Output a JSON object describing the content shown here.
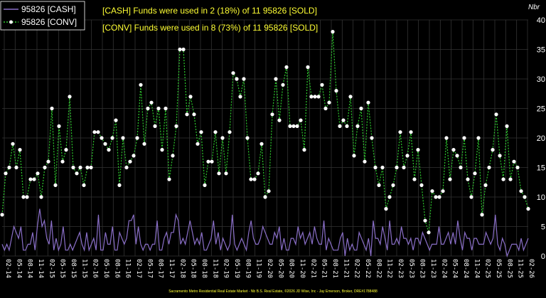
{
  "colors": {
    "cash": "#8a6fc8",
    "conv": "#2ecc2e",
    "annotation": "#ffff33",
    "background": "#000000",
    "grid": "#333333"
  },
  "chart_data": {
    "type": "line",
    "title": "",
    "xlabel": "",
    "ylabel": "Nbr",
    "ylim": [
      0,
      40
    ],
    "yticks": [
      0,
      5,
      10,
      15,
      20,
      25,
      30,
      35,
      40
    ],
    "grid": true,
    "legend_position": "top-left",
    "legend": [
      "95826 [CASH]",
      "95826 [CONV]"
    ],
    "annotations": [
      "[CASH] Funds were used in 2 (18%) of 11 95826 [SOLD]",
      "[CONV] Funds were used in 8 (73%) of 11 95826 [SOLD]"
    ],
    "footer": "Sacramento Metro Residential Real Estate Market - Nb B.S. Real Estate, ©2026 JD Wise, Inc - Jay Emerson, Broker, DRE#1788488",
    "x_tick_labels": [
      "02-14",
      "05-14",
      "08-14",
      "11-14",
      "02-15",
      "05-15",
      "08-15",
      "11-15",
      "02-16",
      "05-16",
      "08-16",
      "11-16",
      "02-17",
      "05-17",
      "08-17",
      "11-17",
      "02-18",
      "05-18",
      "08-18",
      "11-18",
      "02-19",
      "05-19",
      "08-19",
      "11-19",
      "02-20",
      "05-20",
      "08-20",
      "11-20",
      "02-21",
      "05-21",
      "08-21",
      "11-21",
      "02-22",
      "05-22",
      "08-22",
      "11-22",
      "02-23",
      "05-23",
      "08-23",
      "11-23",
      "02-24",
      "05-24",
      "08-24",
      "11-24",
      "02-25",
      "05-25",
      "08-25",
      "11-25",
      "02-26"
    ],
    "series": [
      {
        "name": "95826 [CASH]",
        "marker": "none",
        "values": [
          2,
          1,
          2,
          1,
          3,
          5,
          4,
          3,
          5,
          1,
          1,
          2,
          2,
          4,
          1,
          5,
          8,
          5,
          6,
          3,
          2,
          6,
          1,
          3,
          1,
          2,
          5,
          1,
          1,
          2,
          1,
          2,
          3,
          4,
          2,
          1,
          4,
          1,
          2,
          3,
          1,
          7,
          1,
          1,
          4,
          2,
          2,
          5,
          1,
          1,
          4,
          3,
          2,
          3,
          6,
          6,
          7,
          2,
          5,
          2,
          1,
          2,
          2,
          1,
          2,
          2,
          6,
          1,
          1,
          3,
          4,
          2,
          4,
          4,
          7,
          6,
          2,
          3,
          2,
          4,
          6,
          4,
          2,
          3,
          2,
          4,
          1,
          1,
          2,
          3,
          6,
          2,
          4,
          1,
          3,
          2,
          1,
          2,
          7,
          2,
          1,
          2,
          3,
          2,
          1,
          4,
          6,
          3,
          2,
          2,
          3,
          5,
          4,
          3,
          2,
          2,
          4,
          3,
          5,
          1,
          3,
          1,
          1,
          3,
          3,
          2,
          5,
          3,
          4,
          2,
          3,
          4,
          2,
          5,
          3,
          2,
          2,
          6,
          1,
          3,
          2,
          1,
          1,
          1,
          3,
          4,
          0,
          3,
          1,
          2,
          1,
          1,
          4,
          3,
          2,
          1,
          3,
          0,
          6,
          3,
          3,
          2,
          5,
          3,
          1,
          6,
          2,
          2,
          3,
          2,
          5,
          3,
          3,
          2,
          3,
          1,
          3,
          3,
          2,
          4,
          3,
          2,
          1,
          2,
          2,
          2,
          5,
          2,
          2,
          3,
          4,
          2,
          4,
          2,
          6,
          3,
          1,
          4,
          3,
          3,
          1,
          3,
          3,
          2,
          2,
          2,
          4,
          3,
          2,
          3,
          7,
          2,
          1,
          3,
          2,
          0,
          1,
          2,
          2,
          2,
          1,
          3,
          1,
          2,
          3
        ],
        "values_note": ""
      },
      {
        "name": "95826 [CONV]",
        "marker": "circle",
        "values": [
          7,
          14,
          15,
          19,
          15,
          18,
          10,
          10,
          13,
          13,
          14,
          10,
          15,
          16,
          25,
          12,
          22,
          16,
          18,
          27,
          15,
          14,
          15,
          12,
          15,
          15,
          21,
          21,
          20,
          19,
          18,
          20,
          23,
          12,
          20,
          15,
          16,
          17,
          20,
          29,
          19,
          25,
          26,
          22,
          25,
          18,
          25,
          13,
          17,
          22,
          35,
          35,
          24,
          27,
          24,
          19,
          21,
          12,
          16,
          16,
          21,
          14,
          20,
          14,
          21,
          31,
          30,
          27,
          30,
          20,
          13,
          13,
          14,
          19,
          10,
          11,
          24,
          30,
          23,
          29,
          32,
          22,
          22,
          22,
          23,
          18,
          32,
          27,
          27,
          27,
          29,
          25,
          26,
          38,
          28,
          22,
          23,
          22,
          27,
          17,
          22,
          25,
          16,
          26,
          20,
          15,
          12,
          15,
          8,
          10,
          12,
          15,
          21,
          15,
          17,
          21,
          13,
          18,
          12,
          6,
          4,
          11,
          10,
          10,
          11,
          20,
          13,
          18,
          17,
          15,
          20,
          13,
          10,
          14,
          20,
          7,
          12,
          15,
          18,
          24,
          17,
          13,
          22,
          13,
          16,
          15,
          11,
          10,
          8
        ]
      }
    ]
  }
}
